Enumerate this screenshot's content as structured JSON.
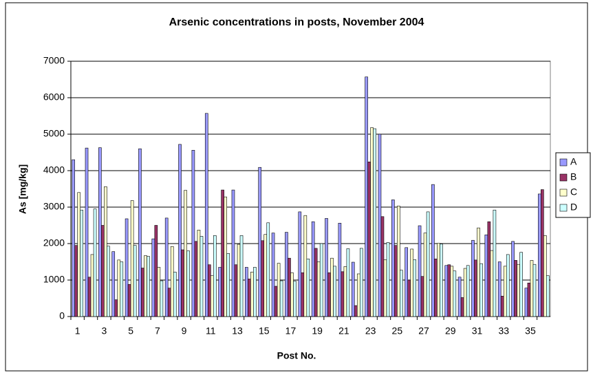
{
  "chart_data": {
    "type": "bar",
    "title": "Arsenic concentrations in posts, November 2004",
    "x_label": "Post No.",
    "y_label": "As [mg/kg]",
    "categories": [
      "1",
      null,
      "3",
      null,
      "5",
      null,
      "7",
      null,
      "9",
      null,
      "11",
      null,
      "13",
      null,
      "15",
      null,
      "17",
      null,
      "19",
      null,
      "21",
      null,
      "23",
      null,
      "25",
      null,
      "27",
      null,
      "29",
      null,
      "31",
      null,
      "33",
      null,
      "35",
      null
    ],
    "series": [
      {
        "name": "A",
        "color": "#9999ff",
        "values": [
          4300,
          4620,
          4630,
          1780,
          2680,
          4600,
          2130,
          2700,
          4720,
          4560,
          5570,
          1350,
          3470,
          1350,
          4090,
          2290,
          2310,
          2870,
          2600,
          2690,
          2560,
          1490,
          6570,
          5000,
          3200,
          1890,
          2490,
          3620,
          1400,
          1080,
          2090,
          2240,
          1500,
          2060,
          780,
          3360
        ]
      },
      {
        "name": "B",
        "color": "#993366",
        "values": [
          1950,
          1080,
          2500,
          460,
          880,
          1330,
          2500,
          780,
          1830,
          2060,
          1420,
          3470,
          1420,
          1030,
          2080,
          830,
          1600,
          1200,
          1870,
          1200,
          1230,
          300,
          4240,
          2740,
          1950,
          1000,
          1100,
          1580,
          1420,
          520,
          1550,
          2600,
          560,
          1540,
          920,
          3480
        ]
      },
      {
        "name": "C",
        "color": "#ffffcc",
        "values": [
          3400,
          1700,
          3560,
          1550,
          3180,
          1670,
          1350,
          1920,
          3460,
          2370,
          1120,
          3280,
          1980,
          1220,
          2250,
          1460,
          1200,
          2770,
          1500,
          1600,
          1370,
          1170,
          5180,
          1560,
          3030,
          1850,
          2290,
          2010,
          1380,
          1320,
          2430,
          1810,
          1380,
          1430,
          1540,
          2220
        ]
      },
      {
        "name": "D",
        "color": "#ccffff",
        "values": [
          2920,
          2950,
          1930,
          1500,
          1950,
          1650,
          980,
          1220,
          1800,
          2200,
          2220,
          1730,
          2220,
          1350,
          2570,
          980,
          970,
          1580,
          2000,
          1380,
          1860,
          1870,
          5150,
          2030,
          1270,
          1560,
          2870,
          1990,
          1250,
          1400,
          1450,
          2920,
          1700,
          1760,
          1430,
          1120
        ]
      }
    ],
    "ylim": [
      0,
      7000
    ],
    "yticks": [
      0,
      1000,
      2000,
      3000,
      4000,
      5000,
      6000,
      7000
    ],
    "grid": true,
    "legend": "right"
  }
}
